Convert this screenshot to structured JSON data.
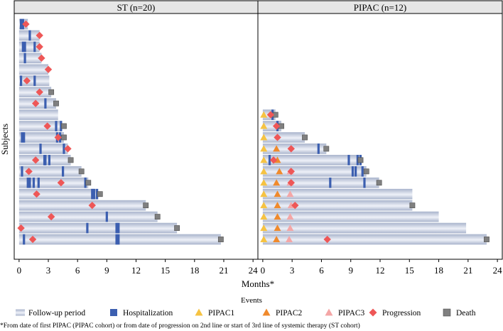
{
  "y_label": "Subjects",
  "x_label": "Months*",
  "legend": {
    "title": "Events",
    "items": [
      {
        "key": "followup",
        "label": "Follow-up period"
      },
      {
        "key": "hosp",
        "label": "Hospitalization"
      },
      {
        "key": "pipac1",
        "label": "PIPAC1"
      },
      {
        "key": "pipac2",
        "label": "PIPAC2"
      },
      {
        "key": "pipac3",
        "label": "PIPAC3"
      },
      {
        "key": "prog",
        "label": "Progression"
      },
      {
        "key": "death",
        "label": "Death"
      }
    ]
  },
  "footnote": "*From date of first PIPAC (PIPAC cohort) or from date of progression on 2nd line or start of 3rd line of systemic therapy (ST cohort)",
  "colors": {
    "hosp": "#3c5fb0",
    "pipac1": "#f6c342",
    "pipac2": "#f08a2c",
    "pipac3": "#f4a6a6",
    "prog": "#ee5757",
    "death": "#808080",
    "strip": "#e6e6e6",
    "bar_light": "#eef1f8",
    "bar_dark": "#a9b4cc"
  },
  "chart_data": [
    {
      "type": "swimmer",
      "title": "ST (n=20)",
      "x_ticks": [
        0,
        3,
        6,
        9,
        12,
        15,
        18,
        21,
        24
      ],
      "xlim": [
        -0.5,
        24.5
      ],
      "n_rows": 20,
      "subjects": [
        {
          "end": 0.9,
          "hosp": [
            0.2,
            0.4
          ],
          "prog": 0.7,
          "death": null
        },
        {
          "end": 2.1,
          "hosp": [
            1.1
          ],
          "prog": 2.1,
          "death": null
        },
        {
          "end": 2.1,
          "hosp": [
            0.4,
            0.6,
            1.6
          ],
          "prog": 2.1,
          "death": null
        },
        {
          "end": 2.3,
          "hosp": [
            0.6
          ],
          "prog": 2.3,
          "death": null
        },
        {
          "end": 3.0,
          "hosp": [],
          "prog": 3.0,
          "death": null
        },
        {
          "end": 3.1,
          "hosp": [
            0.2,
            1.6
          ],
          "prog": 0.8,
          "death": null
        },
        {
          "end": 3.3,
          "hosp": [],
          "prog": 2.1,
          "death": 3.3
        },
        {
          "end": 3.8,
          "hosp": [
            2.7
          ],
          "prog": 1.7,
          "death": 3.8
        },
        {
          "end": 4.0,
          "hosp": [],
          "prog": null,
          "death": null
        },
        {
          "end": 4.4,
          "hosp": [
            3.8,
            4.3
          ],
          "prog": 2.9,
          "death": 4.6
        },
        {
          "end": 4.6,
          "hosp": [
            0.3,
            0.5,
            3.9,
            4.2
          ],
          "prog": 4.0,
          "death": 4.6
        },
        {
          "end": 5.0,
          "hosp": [
            2.2,
            4.6
          ],
          "prog": 5.0,
          "death": null
        },
        {
          "end": 5.3,
          "hosp": [
            2.6,
            2.7,
            3.1
          ],
          "prog": 1.7,
          "death": 5.3
        },
        {
          "end": 6.4,
          "hosp": [
            0.3,
            4.5
          ],
          "prog": 1.0,
          "death": 6.4
        },
        {
          "end": 7.1,
          "hosp": [
            0.9,
            1.1,
            1.5,
            2.0,
            6.8
          ],
          "prog": 4.3,
          "death": 7.1
        },
        {
          "end": 7.9,
          "hosp": [
            7.5,
            7.7,
            8.0
          ],
          "prog": 1.8,
          "death": 8.3
        },
        {
          "end": 13.0,
          "hosp": [],
          "prog": 7.5,
          "death": 13.0
        },
        {
          "end": 14.2,
          "hosp": [
            9.0
          ],
          "prog": 3.3,
          "death": 14.2
        },
        {
          "end": 16.2,
          "hosp": [
            7.0,
            10.0,
            10.2
          ],
          "prog": 0.2,
          "death": 16.2
        },
        {
          "end": 20.7,
          "hosp": [
            0.5,
            10.0,
            10.2
          ],
          "prog": 1.4,
          "death": 20.7
        }
      ]
    },
    {
      "type": "swimmer",
      "title": "PIPAC (n=12)",
      "x_ticks": [
        0,
        3,
        6,
        9,
        12,
        15,
        18,
        21,
        24
      ],
      "xlim": [
        -0.5,
        24.5
      ],
      "n_rows": 20,
      "subjects": [
        {
          "end": 1.3,
          "hosp": [
            1.0
          ],
          "pipac1": 0.1,
          "pipac2": null,
          "pipac3": null,
          "prog": 0.8,
          "death": 1.3
        },
        {
          "end": 1.9,
          "hosp": [
            1.5
          ],
          "pipac1": 0.1,
          "pipac2": null,
          "pipac3": null,
          "prog": 1.4,
          "death": 1.9
        },
        {
          "end": 4.3,
          "hosp": [],
          "pipac1": 0.1,
          "pipac2": null,
          "pipac3": null,
          "prog": 1.5,
          "death": 4.3
        },
        {
          "end": 6.5,
          "hosp": [
            5.7
          ],
          "pipac1": 0.1,
          "pipac2": 1.4,
          "pipac3": null,
          "prog": 2.9,
          "death": 6.5
        },
        {
          "end": 10.0,
          "hosp": [
            0.7,
            8.8,
            9.7,
            10.0
          ],
          "pipac1": 0.1,
          "pipac2": 1.5,
          "pipac3": null,
          "prog": 1.1,
          "death": 10.0
        },
        {
          "end": 10.6,
          "hosp": [
            9.2,
            9.5,
            10.2
          ],
          "pipac1": 0.1,
          "pipac2": 1.7,
          "pipac3": 2.8,
          "prog": 2.9,
          "death": 10.6
        },
        {
          "end": 11.9,
          "hosp": [
            6.9,
            10.4
          ],
          "pipac1": 0.1,
          "pipac2": 1.4,
          "pipac3": 2.8,
          "prog": 2.9,
          "death": 11.9
        },
        {
          "end": 15.3,
          "hosp": [],
          "pipac1": 0.1,
          "pipac2": 1.5,
          "pipac3": 2.8,
          "prog": null,
          "death": null
        },
        {
          "end": 15.3,
          "hosp": [],
          "pipac1": 0.1,
          "pipac2": 1.5,
          "pipac3": 2.9,
          "prog": 3.3,
          "death": 15.3
        },
        {
          "end": 18.0,
          "hosp": [],
          "pipac1": 0.1,
          "pipac2": 1.5,
          "pipac3": 2.8,
          "prog": null,
          "death": null
        },
        {
          "end": 20.8,
          "hosp": [],
          "pipac1": 0.1,
          "pipac2": 1.5,
          "pipac3": 2.8,
          "prog": null,
          "death": null
        },
        {
          "end": 22.9,
          "hosp": [],
          "pipac1": 0.1,
          "pipac2": 1.4,
          "pipac3": 2.7,
          "prog": 6.6,
          "death": 22.9
        }
      ]
    }
  ]
}
